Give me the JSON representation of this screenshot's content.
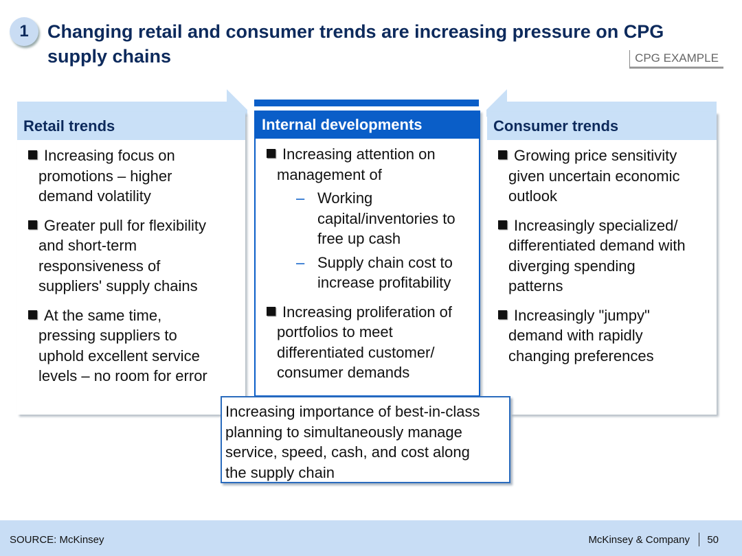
{
  "slide": {
    "number": "1",
    "title_lines": [
      "Changing retail and consumer trends are increasing pressure on CPG",
      "supply chains"
    ],
    "tag": "CPG EXAMPLE"
  },
  "columns": [
    {
      "header": "Retail trends",
      "items": [
        {
          "lines": [
            "Increasing focus on",
            "promotions – higher",
            "demand volatility"
          ]
        },
        {
          "lines": [
            "Greater pull for flexibility",
            "and short-term",
            "responsiveness of",
            "suppliers' supply chains"
          ]
        },
        {
          "lines": [
            "At the same time,",
            "pressing suppliers to",
            "uphold excellent service",
            "levels – no room for error"
          ]
        }
      ]
    },
    {
      "header": "Internal developments",
      "items": [
        {
          "lines": [
            "Increasing attention on",
            "management of"
          ],
          "subs": [
            {
              "lines": [
                "Working",
                "capital/inventories to",
                "free up cash"
              ]
            },
            {
              "lines": [
                "Supply chain cost to",
                "increase profitability"
              ]
            }
          ]
        },
        {
          "lines": [
            "Increasing proliferation of",
            "portfolios to meet",
            "differentiated customer/",
            "consumer demands"
          ]
        }
      ]
    },
    {
      "header": "Consumer trends",
      "items": [
        {
          "lines": [
            "Growing price sensitivity",
            "given uncertain economic",
            "outlook"
          ]
        },
        {
          "lines": [
            "Increasingly specialized/",
            "differentiated demand with",
            "diverging spending",
            "patterns"
          ]
        },
        {
          "lines": [
            "Increasingly \"jumpy\"",
            "demand with rapidly",
            "changing preferences"
          ]
        }
      ]
    }
  ],
  "callout_lines": [
    "Increasing importance of best-in-class",
    "planning to simultaneously manage",
    "service, speed, cash, and cost along",
    "the supply chain"
  ],
  "footer": {
    "source": "SOURCE: McKinsey",
    "brand": "McKinsey & Company",
    "page": "50"
  },
  "colors": {
    "navy": "#0d2a5c",
    "accent": "#0a5ec8",
    "light": "#c9e0f7"
  }
}
